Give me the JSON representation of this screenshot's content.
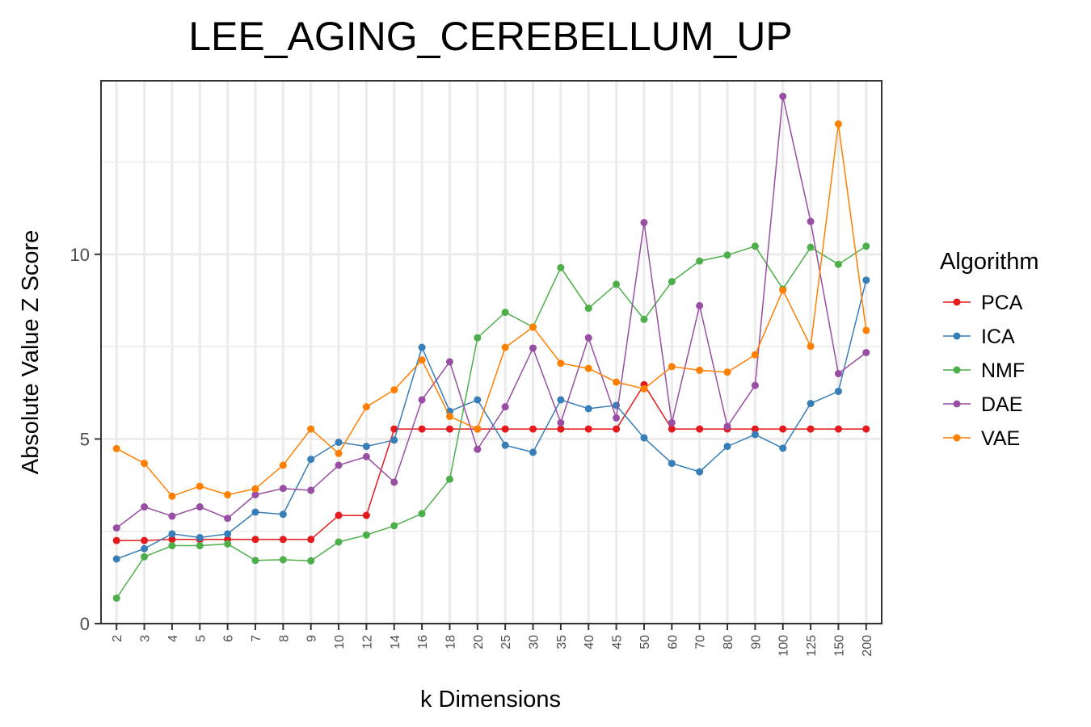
{
  "chart_data": {
    "type": "line",
    "title": "LEE_AGING_CEREBELLUM_UP",
    "xlabel": "k Dimensions",
    "ylabel": "Absolute Value Z Score",
    "categories": [
      "2",
      "3",
      "4",
      "5",
      "6",
      "7",
      "8",
      "9",
      "10",
      "12",
      "14",
      "16",
      "18",
      "20",
      "25",
      "30",
      "35",
      "40",
      "45",
      "50",
      "60",
      "70",
      "80",
      "90",
      "100",
      "125",
      "150",
      "200"
    ],
    "ylim": [
      0,
      14.7
    ],
    "yticks": [
      0,
      5,
      10
    ],
    "grid": true,
    "legend": {
      "title": "Algorithm",
      "position": "right"
    },
    "series": [
      {
        "name": "PCA",
        "color": "#e41a1c",
        "values": [
          2.25,
          2.25,
          2.28,
          2.28,
          2.28,
          2.28,
          2.28,
          2.28,
          2.93,
          2.93,
          5.27,
          5.27,
          5.27,
          5.27,
          5.27,
          5.27,
          5.27,
          5.27,
          5.27,
          6.47,
          5.27,
          5.27,
          5.27,
          5.27,
          5.27,
          5.27,
          5.27,
          5.27
        ]
      },
      {
        "name": "ICA",
        "color": "#377eb8",
        "values": [
          1.75,
          2.03,
          2.43,
          2.33,
          2.43,
          3.02,
          2.96,
          4.45,
          4.91,
          4.8,
          4.97,
          7.48,
          5.75,
          6.06,
          4.83,
          4.64,
          6.06,
          5.82,
          5.91,
          5.03,
          4.34,
          4.11,
          4.8,
          5.12,
          4.75,
          5.96,
          6.29,
          9.3
        ]
      },
      {
        "name": "NMF",
        "color": "#4daf4a",
        "values": [
          0.69,
          1.81,
          2.11,
          2.11,
          2.16,
          1.71,
          1.73,
          1.7,
          2.21,
          2.4,
          2.65,
          2.98,
          3.91,
          7.74,
          8.43,
          8.03,
          9.64,
          8.54,
          9.19,
          8.24,
          9.26,
          9.82,
          9.98,
          10.22,
          9.06,
          10.19,
          9.73,
          10.22
        ]
      },
      {
        "name": "DAE",
        "color": "#984ea3",
        "values": [
          2.59,
          3.16,
          2.91,
          3.16,
          2.85,
          3.49,
          3.66,
          3.61,
          4.29,
          4.52,
          3.83,
          6.06,
          7.09,
          4.72,
          5.87,
          7.46,
          5.44,
          7.74,
          5.57,
          10.86,
          5.44,
          8.61,
          5.34,
          6.45,
          14.28,
          10.89,
          6.77,
          7.34
        ]
      },
      {
        "name": "VAE",
        "color": "#ff7f00",
        "values": [
          4.74,
          4.34,
          3.45,
          3.72,
          3.49,
          3.65,
          4.29,
          5.27,
          4.61,
          5.87,
          6.33,
          7.14,
          5.61,
          5.27,
          7.48,
          8.03,
          7.05,
          6.91,
          6.54,
          6.36,
          6.96,
          6.86,
          6.81,
          7.28,
          9.03,
          7.51,
          13.53,
          7.94
        ]
      }
    ]
  }
}
